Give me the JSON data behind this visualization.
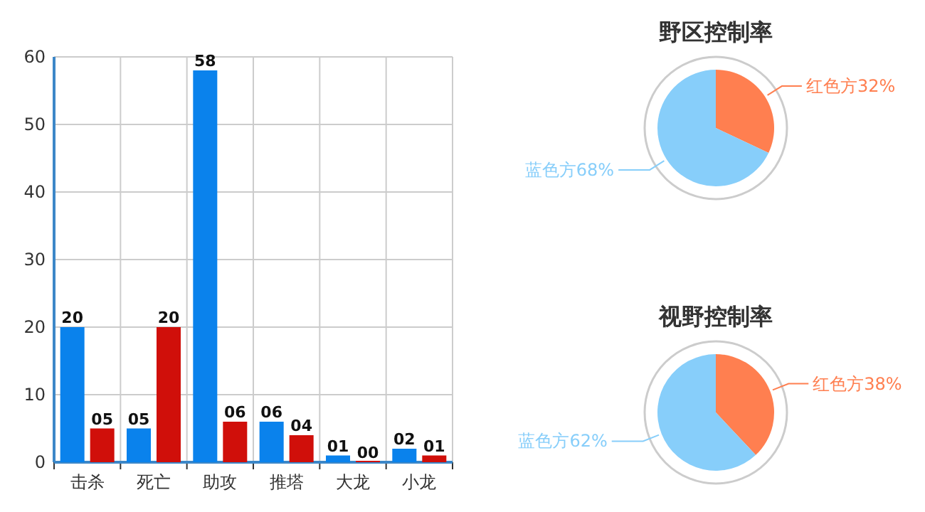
{
  "chart_data": [
    {
      "type": "bar",
      "categories": [
        "击杀",
        "死亡",
        "助攻",
        "推塔",
        "大龙",
        "小龙"
      ],
      "ylim": [
        0,
        60
      ],
      "yticks": [
        0,
        10,
        20,
        30,
        40,
        50,
        60
      ],
      "grid": true,
      "series": [
        {
          "color": "#0a82ec",
          "values": [
            20,
            5,
            58,
            6,
            1,
            2
          ],
          "value_labels": [
            "20",
            "05",
            "58",
            "06",
            "01",
            "02"
          ]
        },
        {
          "color": "#d00f0a",
          "values": [
            5,
            20,
            6,
            4,
            0,
            1
          ],
          "value_labels": [
            "05",
            "20",
            "06",
            "04",
            "00",
            "01"
          ]
        }
      ]
    },
    {
      "type": "pie",
      "title": "野区控制率",
      "categories": [
        "红色方",
        "蓝色方"
      ],
      "values": [
        32,
        68
      ],
      "colors": [
        "#ff7f50",
        "#87cefa"
      ],
      "value_labels": [
        "32%",
        "68%"
      ]
    },
    {
      "type": "pie",
      "title": "视野控制率",
      "categories": [
        "红色方",
        "蓝色方"
      ],
      "values": [
        38,
        62
      ],
      "colors": [
        "#ff7f50",
        "#87cefa"
      ],
      "value_labels": [
        "38%",
        "62%"
      ]
    }
  ]
}
